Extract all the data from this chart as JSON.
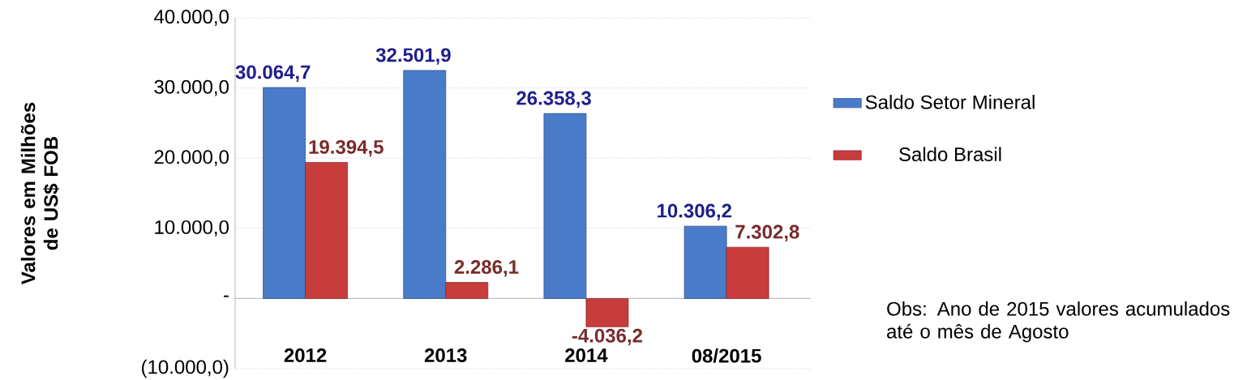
{
  "chart_data": {
    "type": "bar",
    "ylabel": "Valores em Milhões de US$ FOB",
    "categories": [
      "2012",
      "2013",
      "2014",
      "08/2015"
    ],
    "series": [
      {
        "name": "Saldo Setor Mineral",
        "color": "#4a7bc8",
        "values": [
          30064.7,
          32501.9,
          26358.3,
          10306.2
        ],
        "value_labels": [
          "30.064,7",
          "32.501,9",
          "26.358,3",
          "10.306,2"
        ]
      },
      {
        "name": "Saldo Brasil",
        "color": "#c83c3c",
        "values": [
          19394.5,
          2286.1,
          -4036.2,
          7302.8
        ],
        "value_labels": [
          "19.394,5",
          "2.286,1",
          "-4.036,2",
          "7.302,8"
        ]
      }
    ],
    "ylim": [
      -10000,
      40000
    ],
    "yticks": [
      {
        "value": -10000,
        "label": "(10.000,0)"
      },
      {
        "value": 0,
        "label": "-"
      },
      {
        "value": 10000,
        "label": "10.000,0"
      },
      {
        "value": 20000,
        "label": "20.000,0"
      },
      {
        "value": 30000,
        "label": "30.000,0"
      },
      {
        "value": 40000,
        "label": "40.000,0"
      }
    ],
    "grid": "y",
    "legend": "right",
    "annotations": [
      "Obs: Ano de 2015 valores acumulados até  o mês de Agosto"
    ]
  }
}
